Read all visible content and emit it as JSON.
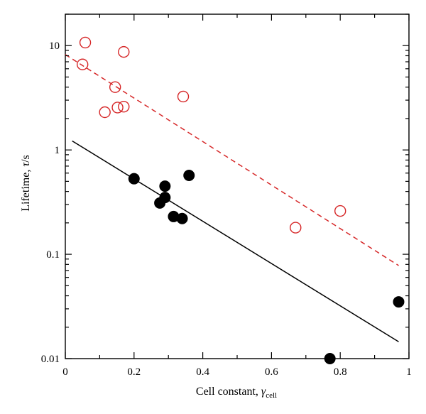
{
  "chart_data": {
    "type": "scatter",
    "xlabel": {
      "main": "Cell constant, ",
      "symbol": "γ",
      "subscript": "cell"
    },
    "ylabel": {
      "main": "Lifetime, ",
      "tau": "τ",
      "unit": "/s"
    },
    "xlim": [
      0,
      1
    ],
    "ylim": [
      0.01,
      20
    ],
    "yscale": "log",
    "grid": false,
    "legend": "none",
    "x_ticks": [
      {
        "value": 0,
        "label": "0"
      },
      {
        "value": 0.2,
        "label": "0.2"
      },
      {
        "value": 0.4,
        "label": "0.4"
      },
      {
        "value": 0.6,
        "label": "0.6"
      },
      {
        "value": 0.8,
        "label": "0.8"
      },
      {
        "value": 1,
        "label": "1"
      }
    ],
    "y_ticks": [
      {
        "value": 0.01,
        "label": "0.01"
      },
      {
        "value": 0.1,
        "label": "0.1"
      },
      {
        "value": 1,
        "label": "1"
      },
      {
        "value": 10,
        "label": "10"
      }
    ],
    "series": [
      {
        "marker": "open-circle",
        "color": "#d62728",
        "points": [
          {
            "x": 0.05,
            "y": 6.6
          },
          {
            "x": 0.058,
            "y": 10.7
          },
          {
            "x": 0.115,
            "y": 2.3
          },
          {
            "x": 0.145,
            "y": 4.0
          },
          {
            "x": 0.152,
            "y": 2.55
          },
          {
            "x": 0.17,
            "y": 2.6
          },
          {
            "x": 0.17,
            "y": 8.7
          },
          {
            "x": 0.343,
            "y": 3.25
          },
          {
            "x": 0.67,
            "y": 0.18
          },
          {
            "x": 0.8,
            "y": 0.26
          }
        ],
        "fit": {
          "style": "dashed",
          "x": [
            0.0,
            0.97
          ],
          "y": [
            8.2,
            0.078
          ]
        }
      },
      {
        "marker": "filled-circle",
        "color": "#000000",
        "points": [
          {
            "x": 0.2,
            "y": 0.53
          },
          {
            "x": 0.275,
            "y": 0.31
          },
          {
            "x": 0.29,
            "y": 0.45
          },
          {
            "x": 0.29,
            "y": 0.35
          },
          {
            "x": 0.315,
            "y": 0.23
          },
          {
            "x": 0.34,
            "y": 0.22
          },
          {
            "x": 0.36,
            "y": 0.57
          },
          {
            "x": 0.77,
            "y": 0.01
          },
          {
            "x": 0.97,
            "y": 0.035
          }
        ],
        "fit": {
          "style": "solid",
          "x": [
            0.02,
            0.97
          ],
          "y": [
            1.22,
            0.0145
          ]
        }
      }
    ]
  }
}
